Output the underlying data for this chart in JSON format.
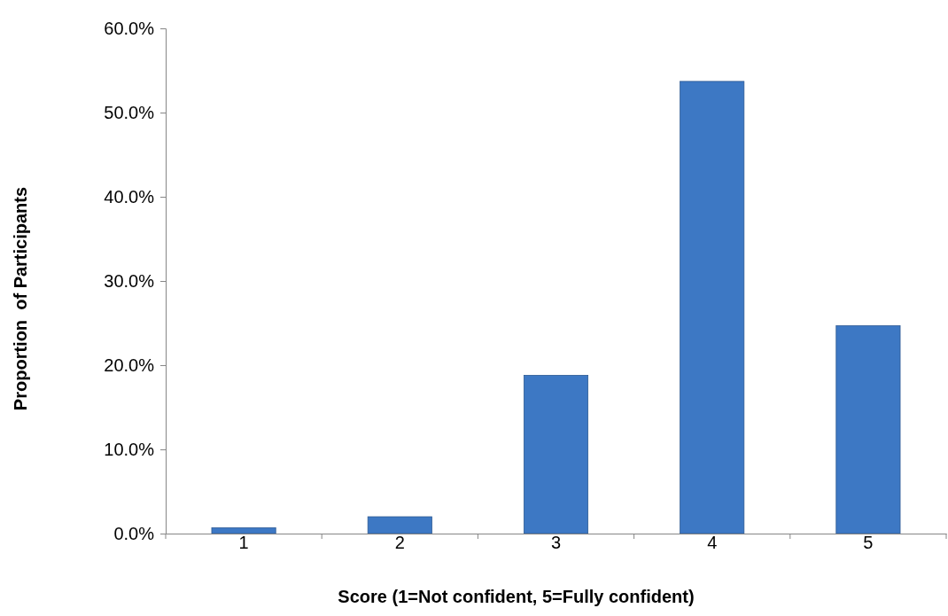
{
  "chart_data": {
    "type": "bar",
    "xlabel": "Score (1=Not confident, 5=Fully confident)",
    "ylabel": "Proportion  of Participants",
    "categories": [
      "1",
      "2",
      "3",
      "4",
      "5"
    ],
    "values": [
      0.7,
      2.0,
      18.8,
      53.7,
      24.7
    ],
    "color": "#3d78c4",
    "ylim": [
      0,
      60
    ],
    "yticks": [
      {
        "value": 0,
        "label": "0.0%"
      },
      {
        "value": 10,
        "label": "10.0%"
      },
      {
        "value": 20,
        "label": "20.0%"
      },
      {
        "value": 30,
        "label": "30.0%"
      },
      {
        "value": 40,
        "label": "40.0%"
      },
      {
        "value": 50,
        "label": "50.0%"
      },
      {
        "value": 60,
        "label": "60.0%"
      }
    ],
    "grid": false
  }
}
